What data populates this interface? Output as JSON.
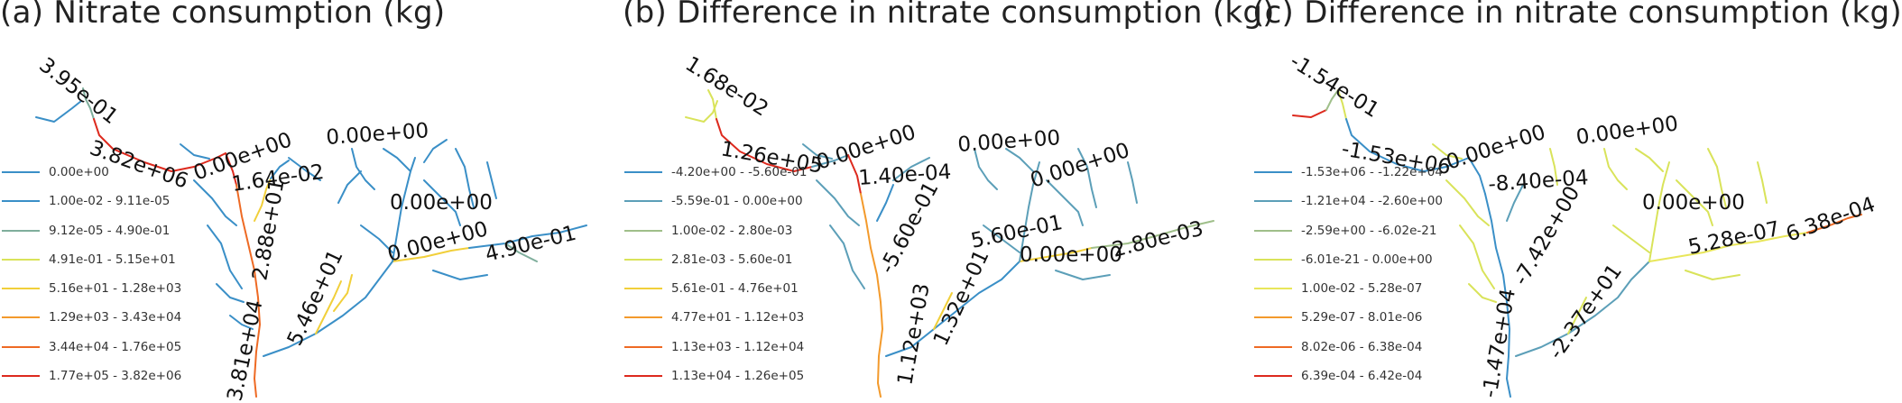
{
  "panels": [
    {
      "title": "(a)  Nitrate consumption (kg)",
      "legend": [
        {
          "label": "0.00e+00",
          "color": "#3a8fc7"
        },
        {
          "label": "1.00e-02 - 9.11e-05",
          "color": "#3a8fc7"
        },
        {
          "label": "9.12e-05 - 4.90e-01",
          "color": "#7fae9c"
        },
        {
          "label": "4.91e-01 - 5.15e+01",
          "color": "#d9e35a"
        },
        {
          "label": "5.16e+01 - 1.28e+03",
          "color": "#f1cf3a"
        },
        {
          "label": "1.29e+03 - 3.43e+04",
          "color": "#f39a2c"
        },
        {
          "label": "3.44e+04 - 1.76e+05",
          "color": "#ee6a24"
        },
        {
          "label": "1.77e+05 - 3.82e+06",
          "color": "#dd2a1e"
        }
      ],
      "labels": [
        "3.95e-01",
        "3.82e+06",
        "0.00e+00",
        "1.64e-02",
        "0.00e+00",
        "0.00e+00",
        "2.88e+01",
        "0.00e+00",
        "4.90e-01",
        "5.46e+01",
        "3.81e+04"
      ]
    },
    {
      "title": "(b) Difference in nitrate consumption (kg)",
      "legend": [
        {
          "label": "-4.20e+00 - -5.60e-01",
          "color": "#3a8fc7"
        },
        {
          "label": "-5.59e-01 - 0.00e+00",
          "color": "#5c9fb8"
        },
        {
          "label": "1.00e-02 - 2.80e-03",
          "color": "#9fbf8a"
        },
        {
          "label": "2.81e-03 - 5.60e-01",
          "color": "#d9e35a"
        },
        {
          "label": "5.61e-01 - 4.76e+01",
          "color": "#f1cf3a"
        },
        {
          "label": "4.77e+01 - 1.12e+03",
          "color": "#f39a2c"
        },
        {
          "label": "1.13e+03 - 1.12e+04",
          "color": "#ee6a24"
        },
        {
          "label": "1.13e+04 - 1.26e+05",
          "color": "#dd2a1e"
        }
      ],
      "labels": [
        "1.68e-02",
        "1.26e+05",
        "0.00e+00",
        "1.40e-04",
        "0.00e+00",
        "0.00e+00",
        "-5.60e-01",
        "5.60e-01",
        "0.00e+00",
        "2.80e-03",
        "1.32e+01",
        "1.12e+03"
      ]
    },
    {
      "title": "(c) Difference in nitrate consumption (kg)",
      "legend": [
        {
          "label": "-1.53e+06 - -1.22e+04",
          "color": "#3a8fc7"
        },
        {
          "label": "-1.21e+04 - -2.60e+00",
          "color": "#5c9fb8"
        },
        {
          "label": "-2.59e+00 - -6.02e-21",
          "color": "#9fbf8a"
        },
        {
          "label": "-6.01e-21 - 0.00e+00",
          "color": "#d9e35a"
        },
        {
          "label": "1.00e-02 - 5.28e-07",
          "color": "#e8e65a"
        },
        {
          "label": "5.29e-07 - 8.01e-06",
          "color": "#f39a2c"
        },
        {
          "label": "8.02e-06 - 6.38e-04",
          "color": "#ee6a24"
        },
        {
          "label": "6.39e-04 - 6.42e-04",
          "color": "#dd2a1e"
        }
      ],
      "labels": [
        "-1.54e-01",
        "-1.53e+06",
        "0.00e+00",
        "0.00e+00",
        "-8.40e-04",
        "0.00e+00",
        "-7.42e+00",
        "5.28e-07",
        "6.38e-04",
        "-1.47e+04",
        "-2.37e+01"
      ]
    }
  ]
}
